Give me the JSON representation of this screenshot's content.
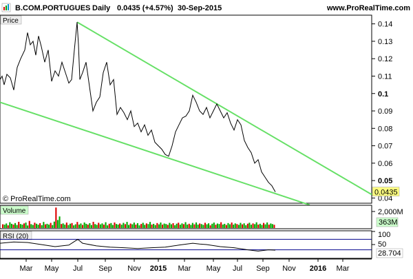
{
  "header": {
    "symbol": "B.COM.PORTUGUES",
    "period": "Daily",
    "last_change": "0.0435 (+4.57%)",
    "date": "30-Sep-2015",
    "site": "www.ProRealTime.com",
    "copyright": "© ProRealTime.com"
  },
  "chart_data": {
    "type": "line",
    "instrument": "B.COM.PORTUGUES",
    "x_labels": [
      "Mar",
      "May",
      "Jul",
      "Sep",
      "Nov",
      "2015",
      "Mar",
      "May",
      "Jul",
      "Sep",
      "Nov",
      "2016",
      "Mar"
    ],
    "price": {
      "title": "Price",
      "y_ticks": [
        "0.14",
        "0.13",
        "0.12",
        "0.11",
        "0.1",
        "0.09",
        "0.08",
        "0.07",
        "0.06",
        "0.05",
        "0.04"
      ],
      "ylim": [
        0.037,
        0.145
      ],
      "last_value": "0.0435",
      "series": [
        {
          "name": "Price",
          "t": [
            0,
            3,
            6,
            10,
            15,
            20,
            25,
            30,
            36,
            40,
            44,
            48,
            52,
            56,
            60,
            65,
            70,
            75,
            80,
            85,
            90,
            95,
            100,
            104,
            108,
            112,
            114,
            116,
            120,
            125,
            130,
            135,
            140,
            145,
            150,
            155,
            160,
            165,
            170,
            175,
            180,
            185,
            190,
            195,
            200,
            205,
            210,
            215,
            220,
            225,
            230,
            235,
            240,
            245,
            250,
            255,
            260,
            265,
            270,
            275,
            280,
            285,
            290,
            295,
            300,
            305,
            310,
            315,
            320,
            325,
            330,
            335,
            340,
            345,
            350,
            355,
            360,
            365,
            370,
            375,
            380,
            385,
            390,
            395,
            400
          ],
          "values": [
            0.108,
            0.11,
            0.105,
            0.111,
            0.109,
            0.102,
            0.115,
            0.12,
            0.125,
            0.135,
            0.128,
            0.13,
            0.122,
            0.133,
            0.127,
            0.118,
            0.125,
            0.107,
            0.113,
            0.11,
            0.118,
            0.112,
            0.106,
            0.108,
            0.125,
            0.141,
            0.128,
            0.108,
            0.112,
            0.118,
            0.104,
            0.09,
            0.095,
            0.098,
            0.112,
            0.118,
            0.105,
            0.108,
            0.088,
            0.092,
            0.089,
            0.085,
            0.09,
            0.081,
            0.083,
            0.078,
            0.082,
            0.076,
            0.079,
            0.072,
            0.07,
            0.068,
            0.065,
            0.064,
            0.07,
            0.078,
            0.082,
            0.086,
            0.087,
            0.09,
            0.099,
            0.095,
            0.09,
            0.088,
            0.092,
            0.086,
            0.09,
            0.094,
            0.09,
            0.086,
            0.089,
            0.083,
            0.079,
            0.085,
            0.082,
            0.073,
            0.069,
            0.066,
            0.06,
            0.062,
            0.055,
            0.052,
            0.049,
            0.047,
            0.0435
          ]
        },
        {
          "name": "Upper trendline",
          "t": [
            112,
            540
          ],
          "values": [
            0.141,
            0.042
          ]
        },
        {
          "name": "Lower trendline",
          "t": [
            0,
            450
          ],
          "values": [
            0.095,
            0.036
          ]
        }
      ]
    },
    "volume": {
      "title": "Volume",
      "y_ticks": [
        "2,000M"
      ],
      "last_value": "363M",
      "ylim": [
        0,
        2400
      ],
      "bars": [
        420,
        380,
        510,
        300,
        650,
        470,
        390,
        560,
        340,
        700,
        450,
        380,
        520,
        610,
        290,
        800,
        430,
        350,
        600,
        480,
        370,
        540,
        320,
        680,
        410,
        470,
        390,
        580,
        330,
        720,
        2300,
        900,
        1300,
        450,
        520,
        380,
        610,
        340,
        490,
        560,
        300,
        420,
        680,
        390,
        510,
        350,
        620,
        470,
        380,
        540,
        330,
        700,
        440,
        360,
        590,
        410,
        520,
        380,
        650,
        300,
        480,
        560,
        340,
        620,
        450,
        390,
        510,
        370,
        580,
        430,
        690,
        350,
        500,
        420,
        610,
        380,
        540,
        300,
        460,
        590,
        360,
        520,
        440,
        680,
        390,
        470,
        330,
        560,
        410,
        620,
        380,
        500,
        450,
        360,
        580,
        420,
        540,
        310,
        490,
        600,
        370,
        520,
        430,
        660,
        390,
        480,
        350,
        570,
        410,
        630,
        380,
        510,
        440,
        360,
        590,
        420,
        530,
        300,
        480,
        610,
        370,
        500,
        450,
        650,
        390,
        470,
        340,
        560,
        420,
        620,
        380,
        520,
        440,
        360,
        580,
        410,
        530,
        310,
        490,
        600,
        370,
        520,
        430,
        640,
        390,
        480,
        350,
        570,
        410,
        630,
        380,
        510,
        440,
        363
      ],
      "bar_colors": [
        "green",
        "red"
      ]
    },
    "rsi": {
      "title": "RSI (20)",
      "y_ticks": [
        "100",
        "50"
      ],
      "last_value": "28.704",
      "ylim": [
        0,
        100
      ],
      "t": [
        0,
        20,
        40,
        60,
        80,
        100,
        113,
        120,
        140,
        160,
        180,
        200,
        220,
        240,
        260,
        280,
        290,
        300,
        320,
        340,
        360,
        375,
        390,
        400
      ],
      "values": [
        55,
        60,
        58,
        50,
        42,
        48,
        70,
        55,
        45,
        40,
        38,
        35,
        38,
        40,
        48,
        55,
        52,
        50,
        42,
        38,
        30,
        25,
        30,
        28.704
      ],
      "bands": [
        70,
        30
      ]
    }
  }
}
